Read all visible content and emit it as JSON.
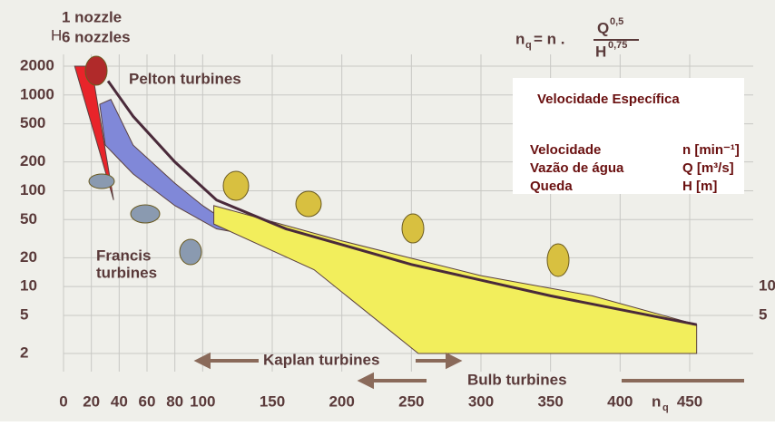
{
  "chart_data": {
    "type": "region",
    "y_label": "H",
    "x_label": "n",
    "x_label_sub": "q",
    "formula": {
      "lhs": "n",
      "lhs_sub": "q",
      "mid": "= n .",
      "num": "Q",
      "num_exp": "0,5",
      "den": "H",
      "den_exp": "0,75"
    },
    "annotations": {
      "nozzle1": "1 nozzle",
      "nozzle6": "6 nozzles",
      "pelton": "Pelton turbines",
      "francis1": "Francis",
      "francis2": "turbines",
      "kaplan": "Kaplan turbines",
      "bulb": "Bulb turbines"
    },
    "box": {
      "title": "Velocidade Específica",
      "rows": [
        [
          "Velocidade",
          "n [min⁻¹]"
        ],
        [
          "Vazão de água",
          "Q [m³/s]"
        ],
        [
          "Queda",
          "H [m]"
        ]
      ]
    },
    "log_y": true,
    "grid": true,
    "xlim": [
      0,
      450
    ],
    "ylim": [
      2,
      2000
    ],
    "xticks": [
      0,
      20,
      40,
      60,
      80,
      100,
      150,
      200,
      250,
      300,
      350,
      400,
      450
    ],
    "yticks": [
      2,
      5,
      10,
      20,
      50,
      100,
      200,
      500,
      1000,
      2000
    ],
    "y2lim": [
      2,
      2000
    ],
    "y2ticks": [
      5,
      10
    ],
    "regions": [
      {
        "color": "#e8242a",
        "x": [
          8,
          20,
          36
        ],
        "y": [
          2000,
          2000,
          80
        ]
      },
      {
        "color": "#8088d8",
        "x": [
          26,
          34,
          50,
          80,
          100,
          115,
          132,
          110,
          80,
          50,
          30
        ],
        "y": [
          800,
          900,
          300,
          120,
          70,
          50,
          35,
          40,
          70,
          150,
          300
        ]
      },
      {
        "color": "#f2ee5c",
        "x": [
          108,
          200,
          300,
          380,
          455,
          455,
          255,
          180,
          108
        ],
        "y": [
          70,
          30,
          13,
          8,
          4,
          2,
          2,
          15,
          45
        ]
      }
    ],
    "series": [
      {
        "color": "#4a2a3a",
        "x": [
          32,
          50,
          80,
          110,
          160,
          250,
          350,
          455
        ],
        "y": [
          1400,
          600,
          200,
          80,
          40,
          17,
          8,
          4
        ]
      }
    ]
  }
}
